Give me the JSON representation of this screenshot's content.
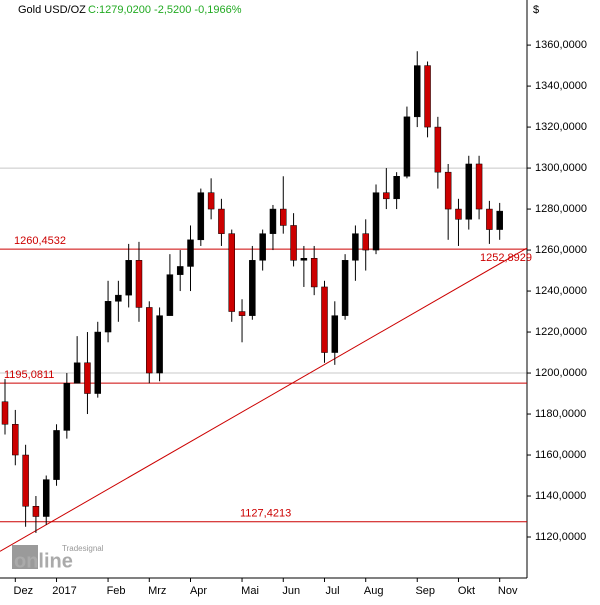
{
  "chart_data": {
    "type": "candlestick",
    "title": "Gold USD/OZ",
    "subtitle": "C:1279,0200 -2,5200 -0,1966%",
    "y_unit": "$",
    "logo": "Tradesignal",
    "logo_word": "online",
    "categories": [
      null,
      "Dez",
      null,
      null,
      null,
      "2017",
      null,
      null,
      null,
      null,
      "Feb",
      null,
      null,
      null,
      "Mrz",
      null,
      null,
      null,
      "Apr",
      null,
      null,
      null,
      null,
      "Mai",
      null,
      null,
      null,
      "Jun",
      null,
      null,
      null,
      "Jul",
      null,
      null,
      null,
      "Aug",
      null,
      null,
      null,
      null,
      "Sep",
      null,
      null,
      null,
      "Okt",
      null,
      null,
      null,
      "Nov"
    ],
    "open": [
      1186,
      1175,
      1160,
      1135,
      1130,
      1148,
      1172,
      1195,
      1205,
      1190,
      1220,
      1235,
      1238,
      1255,
      1232,
      1200,
      1228,
      1248,
      1252,
      1265,
      1288,
      1280,
      1268,
      1230,
      1228,
      1255,
      1268,
      1280,
      1272,
      1255,
      1256,
      1242,
      1210,
      1228,
      1255,
      1268,
      1260,
      1288,
      1285,
      1296,
      1325,
      1350,
      1320,
      1298,
      1280,
      1275,
      1302,
      1280,
      1270
    ],
    "high": [
      1197,
      1182,
      1165,
      1140,
      1150,
      1175,
      1200,
      1218,
      1220,
      1225,
      1245,
      1245,
      1263,
      1264,
      1235,
      1232,
      1258,
      1260,
      1272,
      1290,
      1295,
      1285,
      1270,
      1236,
      1262,
      1270,
      1282,
      1296,
      1278,
      1262,
      1262,
      1245,
      1235,
      1258,
      1272,
      1275,
      1292,
      1300,
      1298,
      1330,
      1357,
      1352,
      1325,
      1302,
      1285,
      1306,
      1306,
      1284,
      1283
    ],
    "low": [
      1170,
      1155,
      1125,
      1122,
      1126,
      1145,
      1168,
      1195,
      1180,
      1188,
      1215,
      1225,
      1232,
      1225,
      1195,
      1196,
      1228,
      1240,
      1240,
      1262,
      1275,
      1262,
      1225,
      1215,
      1226,
      1250,
      1260,
      1268,
      1252,
      1242,
      1238,
      1205,
      1204,
      1226,
      1245,
      1250,
      1258,
      1280,
      1280,
      1295,
      1320,
      1315,
      1290,
      1265,
      1262,
      1270,
      1275,
      1263,
      1265
    ],
    "close": [
      1175,
      1160,
      1135,
      1130,
      1148,
      1172,
      1195,
      1205,
      1190,
      1220,
      1235,
      1238,
      1255,
      1232,
      1200,
      1228,
      1248,
      1252,
      1265,
      1288,
      1280,
      1268,
      1230,
      1228,
      1255,
      1268,
      1280,
      1272,
      1255,
      1256,
      1242,
      1210,
      1228,
      1255,
      1268,
      1260,
      1288,
      1285,
      1296,
      1325,
      1350,
      1320,
      1298,
      1280,
      1275,
      1302,
      1280,
      1270,
      1279
    ],
    "up_color": "#000000",
    "down_color": "#cc0000",
    "ylim": [
      1100,
      1382
    ],
    "yticks": [
      {
        "value": 1120,
        "label": "1120,0000"
      },
      {
        "value": 1140,
        "label": "1140,0000"
      },
      {
        "value": 1160,
        "label": "1160,0000"
      },
      {
        "value": 1180,
        "label": "1180,0000"
      },
      {
        "value": 1200,
        "label": "1200,0000"
      },
      {
        "value": 1220,
        "label": "1220,0000"
      },
      {
        "value": 1240,
        "label": "1240,0000"
      },
      {
        "value": 1260,
        "label": "1260,0000"
      },
      {
        "value": 1280,
        "label": "1280,0000"
      },
      {
        "value": 1300,
        "label": "1300,0000"
      },
      {
        "value": 1320,
        "label": "1320,0000"
      },
      {
        "value": 1340,
        "label": "1340,0000"
      },
      {
        "value": 1360,
        "label": "1360,0000"
      }
    ],
    "grid_y": [
      1200,
      1300
    ],
    "levels": [
      {
        "value": 1260.4532,
        "label": "1260,4532"
      },
      {
        "value": 1195.0811,
        "label": "1195,0811"
      },
      {
        "value": 1127.4213,
        "label": "1127,4213"
      }
    ],
    "trendline": {
      "start": 1113,
      "end": 1261,
      "label": "1252,8929"
    },
    "level_color": "#cc0000"
  }
}
